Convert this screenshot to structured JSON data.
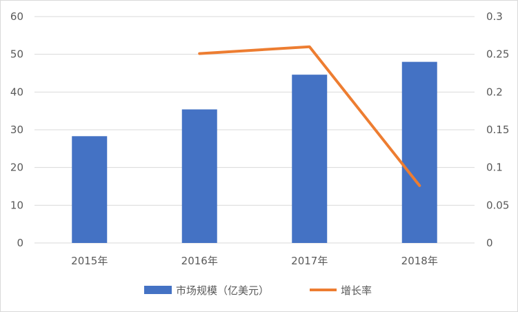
{
  "chart_data": {
    "type": "bar",
    "categories": [
      "2015年",
      "2016年",
      "2017年",
      "2018年"
    ],
    "series": [
      {
        "name": "市场规模（亿美元）",
        "type": "bar",
        "axis": "left",
        "color": "#4472c4",
        "values": [
          28.3,
          35.4,
          44.6,
          48.0
        ]
      },
      {
        "name": "增长率",
        "type": "line",
        "axis": "right",
        "color": "#ed7d31",
        "values": [
          null,
          0.251,
          0.26,
          0.076
        ]
      }
    ],
    "ylim": [
      0,
      60
    ],
    "y_ticks": [
      "0",
      "10",
      "20",
      "30",
      "40",
      "50",
      "60"
    ],
    "y2lim": [
      0,
      0.3
    ],
    "y2_ticks": [
      "0",
      "0.05",
      "0.1",
      "0.15",
      "0.2",
      "0.25",
      "0.3"
    ],
    "grid": true,
    "legend_position": "bottom"
  }
}
